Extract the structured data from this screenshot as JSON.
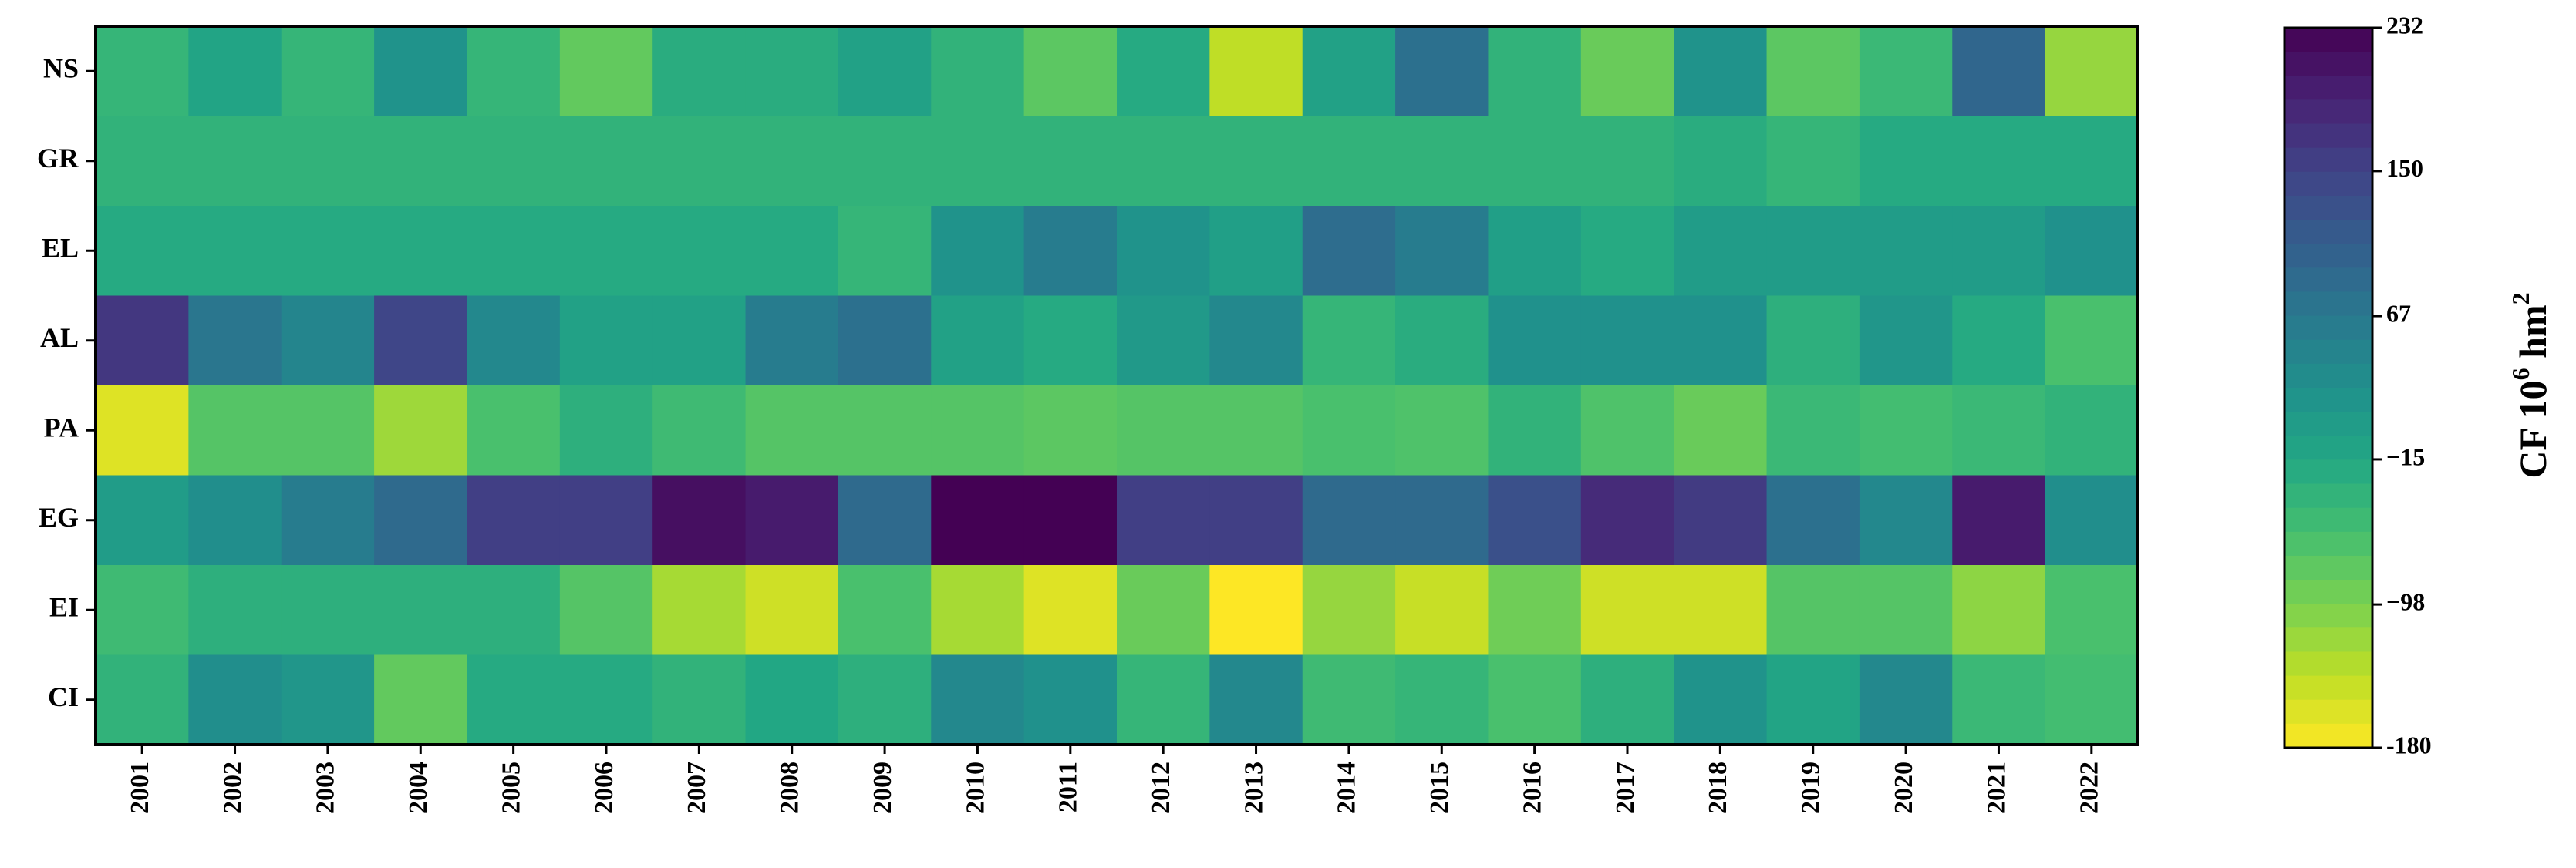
{
  "chart_data": {
    "type": "heatmap",
    "title": "",
    "xlabel": "",
    "ylabel": "",
    "rows": [
      "NS",
      "GR",
      "EL",
      "AL",
      "PA",
      "EG",
      "EI",
      "CI"
    ],
    "columns": [
      "2001",
      "2002",
      "2003",
      "2004",
      "2005",
      "2006",
      "2007",
      "2008",
      "2009",
      "2010",
      "2011",
      "2012",
      "2013",
      "2014",
      "2015",
      "2016",
      "2017",
      "2018",
      "2019",
      "2020",
      "2021",
      "2022"
    ],
    "values": [
      [
        -40,
        -10,
        -40,
        20,
        -40,
        -80,
        -25,
        -25,
        -5,
        -35,
        -75,
        -20,
        -140,
        -5,
        80,
        -35,
        -85,
        20,
        -75,
        -45,
        95,
        -115
      ],
      [
        -35,
        -35,
        -35,
        -35,
        -35,
        -35,
        -35,
        -35,
        -35,
        -35,
        -35,
        -35,
        -35,
        -35,
        -35,
        -35,
        -35,
        -25,
        -40,
        -20,
        -20,
        -20
      ],
      [
        -20,
        -20,
        -20,
        -20,
        -20,
        -20,
        -20,
        -20,
        -40,
        20,
        60,
        20,
        0,
        85,
        60,
        0,
        -20,
        5,
        5,
        5,
        5,
        25
      ],
      [
        165,
        70,
        45,
        145,
        40,
        -5,
        -5,
        60,
        80,
        -5,
        -20,
        10,
        40,
        -40,
        -25,
        25,
        25,
        25,
        -30,
        15,
        -20,
        -60
      ],
      [
        -160,
        -70,
        -70,
        -120,
        -60,
        -30,
        -50,
        -70,
        -70,
        -70,
        -75,
        -70,
        -70,
        -60,
        -65,
        -35,
        -65,
        -85,
        -45,
        -55,
        -45,
        -35
      ],
      [
        5,
        30,
        60,
        90,
        155,
        155,
        215,
        200,
        90,
        232,
        232,
        155,
        155,
        90,
        90,
        130,
        180,
        160,
        80,
        40,
        200,
        30
      ],
      [
        -50,
        -30,
        -30,
        -30,
        -30,
        -70,
        -125,
        -150,
        -60,
        -125,
        -160,
        -85,
        -180,
        -115,
        -145,
        -90,
        -150,
        -150,
        -70,
        -70,
        -110,
        -60
      ],
      [
        -35,
        30,
        15,
        -80,
        -20,
        -20,
        -35,
        -15,
        -30,
        40,
        25,
        -40,
        40,
        -50,
        -40,
        -60,
        -30,
        20,
        -10,
        40,
        -45,
        -55
      ]
    ],
    "colorbar": {
      "label_prefix": "CF 10",
      "label_sup": "6",
      "label_mid": " hm",
      "label_sup2": "2",
      "ticks": [
        "-180",
        "−98",
        "−15",
        "67",
        "150",
        "232"
      ],
      "range": [
        -180,
        232
      ],
      "colormap": "viridis_r"
    }
  }
}
